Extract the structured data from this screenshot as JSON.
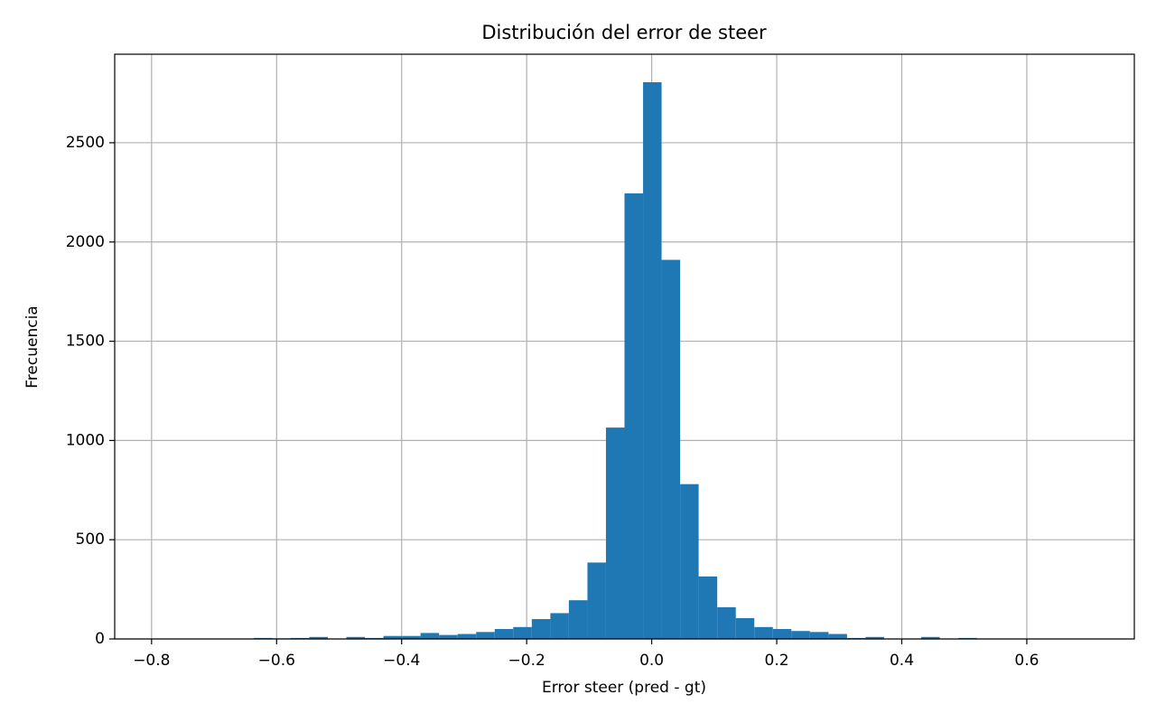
{
  "chart_data": {
    "type": "histogram",
    "title": "Distribución del error de steer",
    "x_label": "Error steer (pred - gt)",
    "y_label": "Frecuencia",
    "color": "#1f77b4",
    "grid": true,
    "bins": [
      -0.785,
      -0.7553,
      -0.7257,
      -0.696,
      -0.6664,
      -0.6367,
      -0.607,
      -0.5774,
      -0.5477,
      -0.5181,
      -0.4884,
      -0.4587,
      -0.4291,
      -0.3994,
      -0.3698,
      -0.3401,
      -0.3104,
      -0.2808,
      -0.2511,
      -0.2215,
      -0.1918,
      -0.1621,
      -0.1325,
      -0.1028,
      -0.0732,
      -0.0435,
      -0.0138,
      0.0158,
      0.0455,
      0.0751,
      0.1048,
      0.1345,
      0.1641,
      0.1938,
      0.2234,
      0.2531,
      0.2828,
      0.3124,
      0.3421,
      0.3717,
      0.4014,
      0.4311,
      0.4607,
      0.4904,
      0.52,
      0.5497,
      0.5794,
      0.609,
      0.6387,
      0.6683,
      0.698
    ],
    "values": [
      1,
      0,
      0,
      0,
      0,
      5,
      3,
      5,
      10,
      0,
      10,
      5,
      15,
      15,
      30,
      20,
      25,
      35,
      50,
      60,
      100,
      130,
      195,
      385,
      1065,
      2245,
      2805,
      1910,
      780,
      315,
      160,
      105,
      60,
      50,
      40,
      35,
      25,
      5,
      10,
      0,
      0,
      10,
      0,
      5,
      0,
      0,
      0,
      0,
      0,
      1
    ],
    "xlim": [
      -0.859,
      0.772
    ],
    "ylim": [
      0,
      2946
    ],
    "xticks": [
      {
        "value": -0.8,
        "label": "−0.8"
      },
      {
        "value": -0.6,
        "label": "−0.6"
      },
      {
        "value": -0.4,
        "label": "−0.4"
      },
      {
        "value": -0.2,
        "label": "−0.2"
      },
      {
        "value": 0,
        "label": "0.0"
      },
      0.2,
      0.4,
      0.6
    ],
    "yticks": [
      0,
      500,
      1000,
      1500,
      2000,
      2500
    ]
  }
}
